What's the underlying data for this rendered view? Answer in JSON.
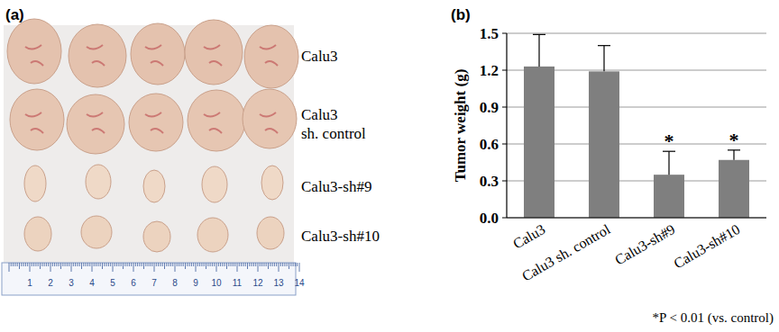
{
  "chart_data": {
    "type": "bar",
    "panel_label": "(b)",
    "y_label": "Tumor weight (g)",
    "categories": [
      "Calu3",
      "Calu3 sh. control",
      "Calu3-sh#9",
      "Calu3-sh#10"
    ],
    "values": [
      1.23,
      1.19,
      0.35,
      0.47
    ],
    "errors": [
      0.26,
      0.21,
      0.19,
      0.08
    ],
    "significance": [
      null,
      null,
      "*",
      "*"
    ],
    "color": "#7f7f7f",
    "ylim": [
      0,
      1.5
    ],
    "yticks": [
      {
        "value": 0,
        "label": "0.0"
      },
      0.3,
      0.6,
      0.9,
      1.2,
      1.5
    ],
    "grid": true,
    "footnote": "*P < 0.01 (vs. control)"
  },
  "photo": {
    "panel_label": "(a)",
    "rows": [
      "Calu3",
      "Calu3 sh. control",
      "Calu3-sh#9",
      "Calu3-sh#10"
    ],
    "ruler": [
      1,
      2,
      3,
      4,
      5,
      6,
      7,
      8,
      9,
      10,
      11,
      12,
      13,
      14
    ]
  }
}
